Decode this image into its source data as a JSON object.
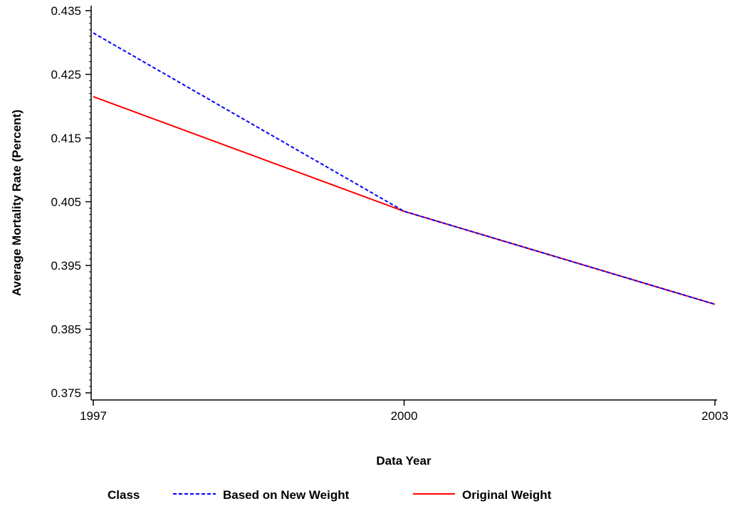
{
  "chart_data": {
    "type": "line",
    "title": "",
    "xlabel": "Data Year",
    "ylabel": "Average Mortality Rate (Percent)",
    "x": [
      1997,
      2000,
      2003
    ],
    "xlim": [
      1997,
      2003
    ],
    "ylim": [
      0.374,
      0.436
    ],
    "x_ticks": [
      "1997",
      "2000",
      "2003"
    ],
    "y_ticks": [
      "0.375",
      "0.385",
      "0.395",
      "0.405",
      "0.415",
      "0.425",
      "0.435"
    ],
    "y_tick_values": [
      0.375,
      0.385,
      0.395,
      0.405,
      0.415,
      0.425,
      0.435
    ],
    "grid": false,
    "legend_position": "bottom",
    "legend_title": "Class",
    "series": [
      {
        "name": "Based on New Weight",
        "values": [
          0.4315,
          0.4035,
          0.3889
        ],
        "color": "#0000ff",
        "style": "dashed"
      },
      {
        "name": "Original Weight",
        "values": [
          0.4215,
          0.4035,
          0.3889
        ],
        "color": "#ff0000",
        "style": "solid"
      }
    ]
  }
}
